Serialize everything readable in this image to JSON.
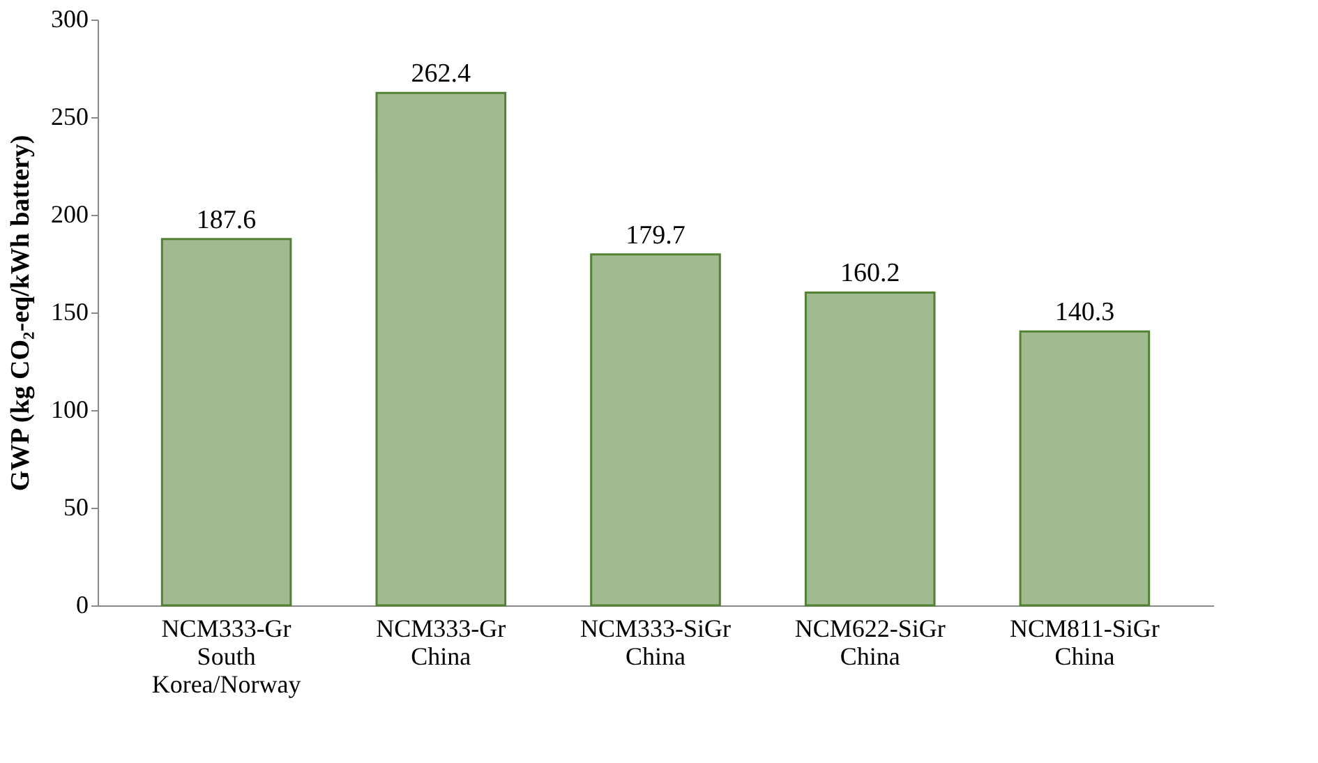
{
  "chart_data": {
    "type": "bar",
    "ylabel": "GWP (kg CO₂-eq/kWh battery)",
    "categories": [
      "NCM333-Gr\nSouth\nKorea/Norway",
      "NCM333-Gr\nChina",
      "NCM333-SiGr\nChina",
      "NCM622-SiGr\nChina",
      "NCM811-SiGr\nChina"
    ],
    "values": [
      187.6,
      262.4,
      179.7,
      160.2,
      140.3
    ],
    "color": "#548235",
    "ylim": [
      0,
      300
    ],
    "yticks": [
      0,
      50,
      100,
      150,
      200,
      250,
      300
    ],
    "grid": false,
    "data_labels": true
  }
}
